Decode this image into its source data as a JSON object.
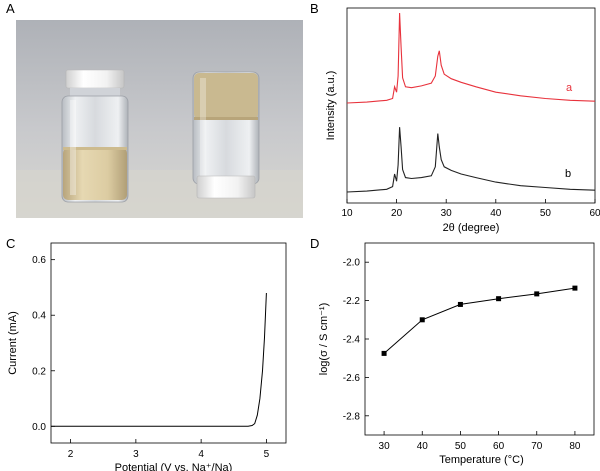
{
  "panels": {
    "A": {
      "label": "A"
    },
    "B": {
      "label": "B"
    },
    "C": {
      "label": "C"
    },
    "D": {
      "label": "D"
    }
  },
  "chart_data": [
    {
      "panel": "B",
      "type": "line",
      "xlabel": "2θ (degree)",
      "ylabel": "Intensity (a.u.)",
      "xlim": [
        10,
        60
      ],
      "xticks": [
        10,
        20,
        30,
        40,
        50,
        60
      ],
      "yticks_shown": false,
      "series": [
        {
          "name": "a",
          "color": "#e8323c",
          "x": [
            10,
            14,
            18,
            19.2,
            19.6,
            20,
            20.3,
            20.6,
            20.9,
            21.2,
            21.8,
            23,
            25,
            27,
            27.8,
            28.3,
            28.6,
            29.0,
            29.6,
            31,
            33,
            36,
            40,
            45,
            50,
            55,
            60
          ],
          "y": [
            0,
            0.01,
            0.03,
            0.05,
            0.18,
            0.12,
            0.3,
            1.0,
            0.62,
            0.28,
            0.18,
            0.17,
            0.19,
            0.22,
            0.3,
            0.52,
            0.58,
            0.42,
            0.32,
            0.27,
            0.23,
            0.18,
            0.12,
            0.08,
            0.05,
            0.03,
            0.02
          ]
        },
        {
          "name": "b",
          "color": "#222222",
          "x": [
            10,
            14,
            18,
            19.2,
            19.6,
            20,
            20.3,
            20.6,
            20.9,
            21.2,
            21.8,
            23,
            25,
            27,
            27.8,
            28.3,
            28.6,
            29.0,
            29.6,
            31,
            33,
            36,
            40,
            45,
            50,
            55,
            60
          ],
          "y": [
            0,
            0.01,
            0.03,
            0.06,
            0.2,
            0.12,
            0.3,
            0.72,
            0.5,
            0.25,
            0.16,
            0.15,
            0.16,
            0.18,
            0.28,
            0.65,
            0.5,
            0.36,
            0.28,
            0.24,
            0.2,
            0.16,
            0.11,
            0.07,
            0.05,
            0.03,
            0.02
          ]
        }
      ]
    },
    {
      "panel": "C",
      "type": "line",
      "xlabel": "Potential (V vs. Na⁺/Na)",
      "ylabel": "Current (mA)",
      "xlim": [
        1.7,
        5.3
      ],
      "ylim": [
        -0.06,
        0.66
      ],
      "xticks": [
        2,
        3,
        4,
        5
      ],
      "yticks": [
        0.0,
        0.2,
        0.4,
        0.6
      ],
      "series": [
        {
          "x": [
            1.7,
            2.5,
            3.5,
            4.5,
            4.72,
            4.78,
            4.82,
            4.86,
            4.9,
            4.94,
            4.97,
            5.0
          ],
          "y": [
            0.0,
            0.0,
            0.0,
            0.0,
            0.0,
            0.003,
            0.01,
            0.04,
            0.1,
            0.2,
            0.32,
            0.48
          ]
        }
      ]
    },
    {
      "panel": "D",
      "type": "line",
      "xlabel": "Temperature (°C)",
      "ylabel": "log(σ / S cm⁻¹)",
      "xlim": [
        25,
        85
      ],
      "ylim": [
        -2.9,
        -1.9
      ],
      "xticks": [
        30,
        40,
        50,
        60,
        70,
        80
      ],
      "yticks": [
        -2.0,
        -2.2,
        -2.4,
        -2.6,
        -2.8
      ],
      "series": [
        {
          "x": [
            30,
            40,
            50,
            60,
            70,
            80
          ],
          "y": [
            -2.475,
            -2.3,
            -2.22,
            -2.19,
            -2.165,
            -2.135
          ]
        }
      ]
    }
  ]
}
